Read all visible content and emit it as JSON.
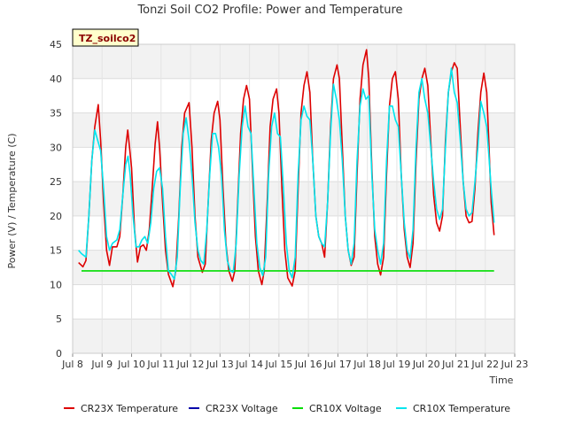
{
  "chart_data": {
    "type": "line",
    "title": "Tonzi Soil CO2 Profile: Power and Temperature",
    "xlabel": "Time",
    "ylabel": "Power (V) / Temperature (C)",
    "badge": "TZ_soilco2",
    "xlim": [
      8.0,
      23.0
    ],
    "ylim": [
      0,
      45
    ],
    "x_ticks": [
      8,
      9,
      10,
      11,
      12,
      13,
      14,
      15,
      16,
      17,
      18,
      19,
      20,
      21,
      22,
      23
    ],
    "x_tick_labels": [
      "Jul 8",
      "Jul 9",
      "Jul 10",
      "Jul 11",
      "Jul 12",
      "Jul 13",
      "Jul 14",
      "Jul 15",
      "Jul 16",
      "Jul 17",
      "Jul 18",
      "Jul 19",
      "Jul 20",
      "Jul 21",
      "Jul 22",
      "Jul 23"
    ],
    "y_ticks": [
      0,
      5,
      10,
      15,
      20,
      25,
      30,
      35,
      40,
      45
    ],
    "y_tick_labels": [
      "0",
      "5",
      "10",
      "15",
      "20",
      "25",
      "30",
      "35",
      "40",
      "45"
    ],
    "legend_position": "bottom",
    "series": [
      {
        "name": "CR23X Temperature",
        "color": "#dd0000",
        "points": [
          [
            8.2,
            13.2
          ],
          [
            8.35,
            12.6
          ],
          [
            8.45,
            13.5
          ],
          [
            8.55,
            20
          ],
          [
            8.65,
            28
          ],
          [
            8.75,
            33
          ],
          [
            8.87,
            36.2
          ],
          [
            8.95,
            31
          ],
          [
            9.05,
            22
          ],
          [
            9.15,
            15
          ],
          [
            9.25,
            12.8
          ],
          [
            9.35,
            15.5
          ],
          [
            9.5,
            15.5
          ],
          [
            9.6,
            17
          ],
          [
            9.7,
            23
          ],
          [
            9.8,
            30
          ],
          [
            9.87,
            32.5
          ],
          [
            9.93,
            30
          ],
          [
            10.0,
            27
          ],
          [
            10.1,
            18
          ],
          [
            10.2,
            13.3
          ],
          [
            10.3,
            15.5
          ],
          [
            10.4,
            15.8
          ],
          [
            10.5,
            15
          ],
          [
            10.6,
            18
          ],
          [
            10.7,
            24
          ],
          [
            10.8,
            30.5
          ],
          [
            10.88,
            33.7
          ],
          [
            10.95,
            30
          ],
          [
            11.05,
            22
          ],
          [
            11.15,
            15
          ],
          [
            11.25,
            11.5
          ],
          [
            11.4,
            9.7
          ],
          [
            11.5,
            12
          ],
          [
            11.6,
            20
          ],
          [
            11.7,
            30
          ],
          [
            11.8,
            35
          ],
          [
            11.95,
            36.5
          ],
          [
            12.05,
            30
          ],
          [
            12.15,
            20
          ],
          [
            12.25,
            14
          ],
          [
            12.4,
            11.8
          ],
          [
            12.5,
            13
          ],
          [
            12.6,
            22
          ],
          [
            12.7,
            31
          ],
          [
            12.8,
            35
          ],
          [
            12.92,
            36.7
          ],
          [
            13.0,
            34
          ],
          [
            13.1,
            24
          ],
          [
            13.2,
            16
          ],
          [
            13.3,
            12
          ],
          [
            13.42,
            10.5
          ],
          [
            13.5,
            12
          ],
          [
            13.6,
            22
          ],
          [
            13.7,
            32
          ],
          [
            13.8,
            37
          ],
          [
            13.9,
            39
          ],
          [
            14.0,
            37
          ],
          [
            14.1,
            27
          ],
          [
            14.2,
            17
          ],
          [
            14.3,
            12
          ],
          [
            14.42,
            10
          ],
          [
            14.5,
            12
          ],
          [
            14.6,
            22
          ],
          [
            14.7,
            33
          ],
          [
            14.8,
            37
          ],
          [
            14.92,
            38.5
          ],
          [
            15.0,
            35
          ],
          [
            15.1,
            24
          ],
          [
            15.2,
            15
          ],
          [
            15.3,
            11
          ],
          [
            15.45,
            9.8
          ],
          [
            15.55,
            12
          ],
          [
            15.65,
            24
          ],
          [
            15.75,
            35
          ],
          [
            15.85,
            39
          ],
          [
            15.95,
            41
          ],
          [
            16.05,
            38
          ],
          [
            16.15,
            28
          ],
          [
            16.25,
            20
          ],
          [
            16.35,
            17
          ],
          [
            16.45,
            16
          ],
          [
            16.55,
            14
          ],
          [
            16.65,
            22
          ],
          [
            16.75,
            33
          ],
          [
            16.85,
            40
          ],
          [
            16.97,
            42
          ],
          [
            17.05,
            40
          ],
          [
            17.15,
            30
          ],
          [
            17.25,
            20
          ],
          [
            17.35,
            15
          ],
          [
            17.45,
            12.8
          ],
          [
            17.55,
            14
          ],
          [
            17.65,
            26
          ],
          [
            17.75,
            37
          ],
          [
            17.85,
            42
          ],
          [
            17.97,
            44.2
          ],
          [
            18.05,
            40
          ],
          [
            18.15,
            27
          ],
          [
            18.25,
            17
          ],
          [
            18.35,
            13
          ],
          [
            18.45,
            11.4
          ],
          [
            18.55,
            14
          ],
          [
            18.65,
            26
          ],
          [
            18.75,
            36
          ],
          [
            18.85,
            40
          ],
          [
            18.95,
            41
          ],
          [
            19.05,
            37
          ],
          [
            19.15,
            26
          ],
          [
            19.25,
            18
          ],
          [
            19.35,
            14
          ],
          [
            19.45,
            12.5
          ],
          [
            19.55,
            16
          ],
          [
            19.65,
            28
          ],
          [
            19.75,
            37
          ],
          [
            19.85,
            40
          ],
          [
            19.95,
            41.5
          ],
          [
            20.05,
            39
          ],
          [
            20.15,
            31
          ],
          [
            20.25,
            23
          ],
          [
            20.35,
            19
          ],
          [
            20.45,
            17.8
          ],
          [
            20.55,
            20
          ],
          [
            20.65,
            31
          ],
          [
            20.75,
            38
          ],
          [
            20.85,
            41
          ],
          [
            20.95,
            42.3
          ],
          [
            21.05,
            41.5
          ],
          [
            21.15,
            33
          ],
          [
            21.25,
            25
          ],
          [
            21.35,
            20
          ],
          [
            21.45,
            19
          ],
          [
            21.55,
            19.2
          ],
          [
            21.65,
            24
          ],
          [
            21.75,
            32
          ],
          [
            21.85,
            38
          ],
          [
            21.95,
            40.8
          ],
          [
            22.05,
            38
          ],
          [
            22.12,
            31
          ],
          [
            22.2,
            22
          ],
          [
            22.3,
            17.2
          ]
        ]
      },
      {
        "name": "CR23X Voltage",
        "color": "#0000aa",
        "points": []
      },
      {
        "name": "CR10X Voltage",
        "color": "#00dd00",
        "points": [
          [
            8.3,
            12.0
          ],
          [
            22.3,
            12.0
          ]
        ]
      },
      {
        "name": "CR10X Temperature",
        "color": "#00e5ee",
        "points": [
          [
            8.2,
            15
          ],
          [
            8.3,
            14.5
          ],
          [
            8.45,
            14
          ],
          [
            8.55,
            20
          ],
          [
            8.65,
            28
          ],
          [
            8.75,
            32.5
          ],
          [
            8.85,
            31
          ],
          [
            8.95,
            29.5
          ],
          [
            9.05,
            24
          ],
          [
            9.15,
            17
          ],
          [
            9.25,
            15
          ],
          [
            9.35,
            16
          ],
          [
            9.5,
            16.5
          ],
          [
            9.6,
            18
          ],
          [
            9.7,
            23
          ],
          [
            9.8,
            27.5
          ],
          [
            9.88,
            28.7
          ],
          [
            9.95,
            26
          ],
          [
            10.05,
            20
          ],
          [
            10.15,
            15.5
          ],
          [
            10.25,
            15.5
          ],
          [
            10.35,
            16.5
          ],
          [
            10.45,
            17
          ],
          [
            10.55,
            16
          ],
          [
            10.65,
            19
          ],
          [
            10.75,
            24
          ],
          [
            10.85,
            26.5
          ],
          [
            10.95,
            27
          ],
          [
            11.05,
            24
          ],
          [
            11.15,
            17
          ],
          [
            11.25,
            12
          ],
          [
            11.35,
            11.5
          ],
          [
            11.45,
            10.8
          ],
          [
            11.55,
            14
          ],
          [
            11.65,
            24
          ],
          [
            11.75,
            32
          ],
          [
            11.85,
            34.3
          ],
          [
            11.95,
            31
          ],
          [
            12.05,
            26
          ],
          [
            12.15,
            19
          ],
          [
            12.25,
            15
          ],
          [
            12.35,
            13.5
          ],
          [
            12.45,
            13
          ],
          [
            12.55,
            18
          ],
          [
            12.65,
            26
          ],
          [
            12.75,
            32
          ],
          [
            12.85,
            32
          ],
          [
            12.95,
            30
          ],
          [
            13.05,
            26
          ],
          [
            13.15,
            18
          ],
          [
            13.25,
            13.5
          ],
          [
            13.35,
            12
          ],
          [
            13.45,
            11.8
          ],
          [
            13.55,
            16
          ],
          [
            13.65,
            26
          ],
          [
            13.75,
            33
          ],
          [
            13.85,
            36
          ],
          [
            13.95,
            33
          ],
          [
            14.05,
            32
          ],
          [
            14.15,
            24
          ],
          [
            14.25,
            16
          ],
          [
            14.35,
            12.5
          ],
          [
            14.45,
            11.3
          ],
          [
            14.55,
            14
          ],
          [
            14.65,
            26
          ],
          [
            14.75,
            33
          ],
          [
            14.85,
            35
          ],
          [
            14.95,
            32
          ],
          [
            15.05,
            31.5
          ],
          [
            15.15,
            24
          ],
          [
            15.25,
            16
          ],
          [
            15.35,
            12
          ],
          [
            15.45,
            11
          ],
          [
            15.55,
            14
          ],
          [
            15.65,
            26
          ],
          [
            15.75,
            34
          ],
          [
            15.85,
            36
          ],
          [
            15.95,
            34.5
          ],
          [
            16.05,
            34
          ],
          [
            16.15,
            28
          ],
          [
            16.25,
            20
          ],
          [
            16.35,
            17
          ],
          [
            16.45,
            16
          ],
          [
            16.55,
            15.5
          ],
          [
            16.65,
            22
          ],
          [
            16.75,
            32
          ],
          [
            16.85,
            39.2
          ],
          [
            16.95,
            37
          ],
          [
            17.05,
            34
          ],
          [
            17.15,
            28
          ],
          [
            17.25,
            20
          ],
          [
            17.35,
            15
          ],
          [
            17.45,
            13
          ],
          [
            17.55,
            16
          ],
          [
            17.65,
            28
          ],
          [
            17.75,
            36
          ],
          [
            17.85,
            38.5
          ],
          [
            17.95,
            37
          ],
          [
            18.05,
            37.5
          ],
          [
            18.15,
            26
          ],
          [
            18.25,
            18
          ],
          [
            18.35,
            15
          ],
          [
            18.45,
            13
          ],
          [
            18.55,
            16
          ],
          [
            18.65,
            28
          ],
          [
            18.75,
            36
          ],
          [
            18.85,
            36
          ],
          [
            18.95,
            34
          ],
          [
            19.05,
            33
          ],
          [
            19.15,
            26
          ],
          [
            19.25,
            19
          ],
          [
            19.35,
            15
          ],
          [
            19.45,
            13.8
          ],
          [
            19.55,
            18
          ],
          [
            19.65,
            30
          ],
          [
            19.75,
            38
          ],
          [
            19.85,
            40
          ],
          [
            19.95,
            37
          ],
          [
            20.05,
            35
          ],
          [
            20.15,
            30
          ],
          [
            20.25,
            25
          ],
          [
            20.35,
            21
          ],
          [
            20.45,
            19.5
          ],
          [
            20.55,
            21
          ],
          [
            20.65,
            30
          ],
          [
            20.75,
            38
          ],
          [
            20.85,
            41.5
          ],
          [
            20.95,
            38
          ],
          [
            21.05,
            36.5
          ],
          [
            21.15,
            31
          ],
          [
            21.25,
            25
          ],
          [
            21.35,
            21
          ],
          [
            21.45,
            20
          ],
          [
            21.55,
            20.5
          ],
          [
            21.65,
            25
          ],
          [
            21.75,
            30
          ],
          [
            21.85,
            36.7
          ],
          [
            21.95,
            35
          ],
          [
            22.05,
            33
          ],
          [
            22.12,
            29
          ],
          [
            22.2,
            24
          ],
          [
            22.3,
            19
          ]
        ]
      }
    ]
  }
}
